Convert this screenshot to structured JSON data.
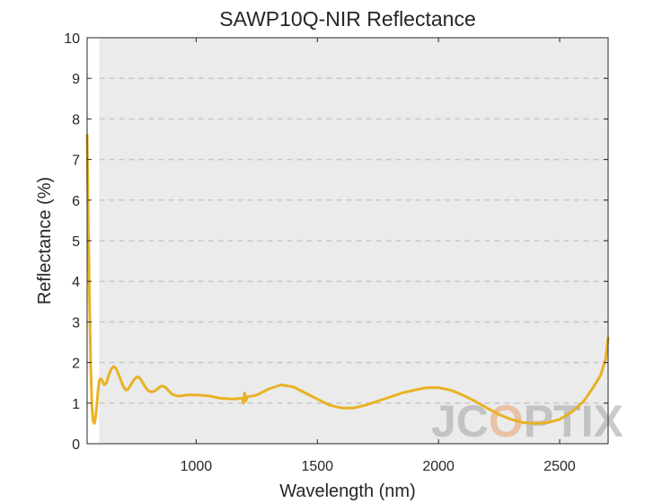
{
  "chart_data": {
    "type": "line",
    "title": "SAWP10Q-NIR Reflectance",
    "xlabel": "Wavelength (nm)",
    "ylabel": "Reflectance (%)",
    "xlim": [
      550,
      2700
    ],
    "ylim": [
      0,
      10
    ],
    "xticks": [
      1000,
      1500,
      2000,
      2500
    ],
    "yticks": [
      0,
      1,
      2,
      3,
      4,
      5,
      6,
      7,
      8,
      9,
      10
    ],
    "grid": true,
    "grid_style": "dashed horizontal",
    "shaded_band": [
      600,
      2700
    ],
    "line_color": "#e8b224",
    "series": [
      {
        "x": [
          550,
          555,
          560,
          565,
          570,
          575,
          580,
          585,
          590,
          595,
          600,
          605,
          610,
          620,
          630,
          640,
          650,
          660,
          670,
          680,
          690,
          700,
          710,
          720,
          730,
          740,
          750,
          760,
          770,
          780,
          790,
          800,
          810,
          820,
          830,
          840,
          850,
          860,
          870,
          880,
          890,
          900,
          920,
          940,
          960,
          980,
          1000,
          1050,
          1100,
          1150,
          1190,
          1195,
          1200,
          1205,
          1210,
          1250,
          1300,
          1350,
          1400,
          1450,
          1500,
          1550,
          1600,
          1650,
          1700,
          1750,
          1800,
          1850,
          1900,
          1950,
          2000,
          2050,
          2100,
          2150,
          2200,
          2250,
          2300,
          2350,
          2400,
          2450,
          2500,
          2550,
          2600,
          2640,
          2670,
          2690,
          2700
        ],
        "values": [
          7.6,
          5.5,
          3.5,
          1.9,
          0.9,
          0.55,
          0.5,
          0.65,
          0.95,
          1.3,
          1.55,
          1.6,
          1.58,
          1.45,
          1.5,
          1.7,
          1.85,
          1.9,
          1.85,
          1.7,
          1.55,
          1.4,
          1.32,
          1.35,
          1.45,
          1.55,
          1.62,
          1.65,
          1.6,
          1.5,
          1.4,
          1.32,
          1.28,
          1.28,
          1.3,
          1.35,
          1.4,
          1.42,
          1.4,
          1.35,
          1.28,
          1.22,
          1.18,
          1.18,
          1.2,
          1.2,
          1.2,
          1.18,
          1.12,
          1.1,
          1.12,
          1.0,
          1.25,
          1.05,
          1.15,
          1.2,
          1.35,
          1.45,
          1.4,
          1.25,
          1.1,
          0.95,
          0.88,
          0.88,
          0.95,
          1.05,
          1.15,
          1.25,
          1.32,
          1.38,
          1.38,
          1.32,
          1.2,
          1.05,
          0.88,
          0.72,
          0.6,
          0.52,
          0.5,
          0.52,
          0.6,
          0.78,
          1.05,
          1.4,
          1.7,
          2.1,
          2.6
        ]
      }
    ],
    "watermark": "JCOPTIX"
  }
}
